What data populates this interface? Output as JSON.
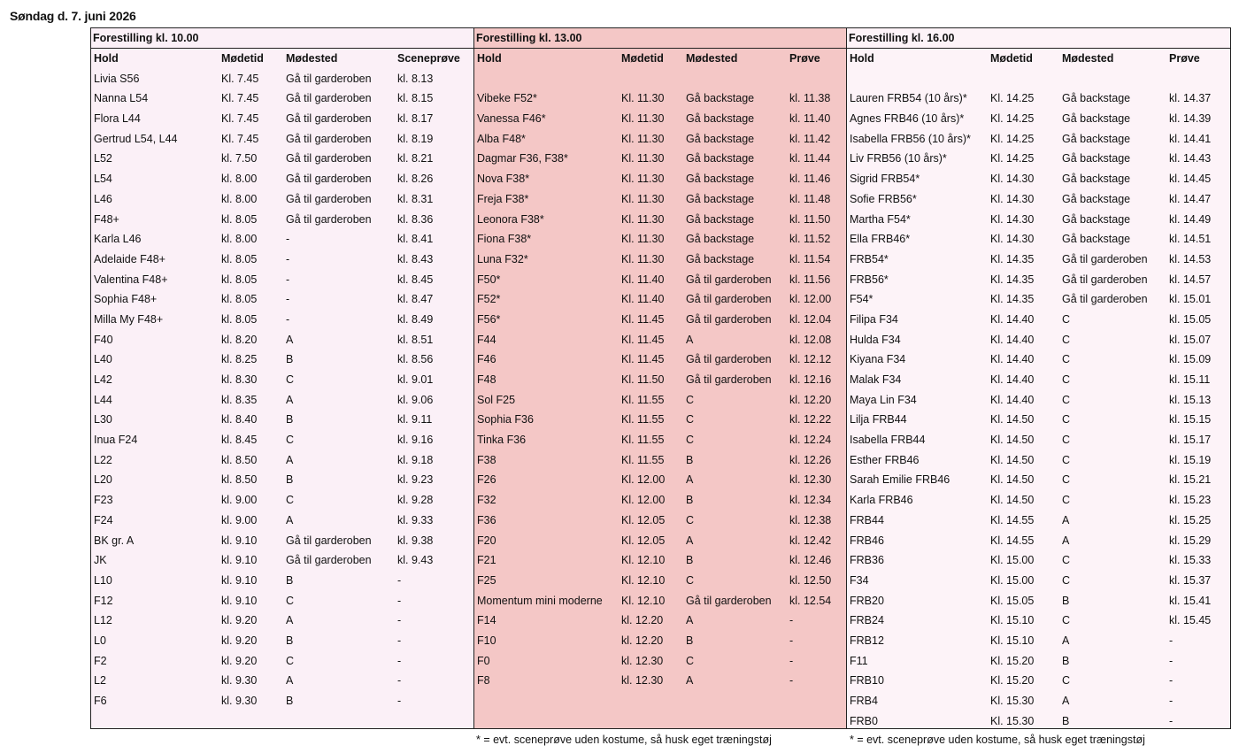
{
  "date": "Søndag d. 7. juni 2026",
  "panels": [
    {
      "title": "Forestilling kl. 10.00",
      "headers": [
        "Hold",
        "Mødetid",
        "Mødested",
        "Sceneprøve"
      ],
      "rows": [
        [
          "Livia S56",
          "Kl. 7.45",
          "Gå til garderoben",
          "kl. 8.13"
        ],
        [
          "Nanna L54",
          "Kl. 7.45",
          "Gå til garderoben",
          "kl. 8.15"
        ],
        [
          "Flora L44",
          "Kl. 7.45",
          "Gå til garderoben",
          "kl. 8.17"
        ],
        [
          "Gertrud L54, L44",
          "Kl. 7.45",
          "Gå til garderoben",
          "kl. 8.19"
        ],
        [
          "L52",
          "kl. 7.50",
          "Gå til garderoben",
          "kl. 8.21"
        ],
        [
          "L54",
          "kl. 8.00",
          "Gå til garderoben",
          "kl. 8.26"
        ],
        [
          "L46",
          "kl. 8.00",
          "Gå til garderoben",
          "kl. 8.31"
        ],
        [
          "F48+",
          "kl. 8.05",
          "Gå til garderoben",
          "kl. 8.36"
        ],
        [
          "Karla L46",
          "kl. 8.00",
          "-",
          "kl. 8.41"
        ],
        [
          "Adelaide F48+",
          "kl. 8.05",
          "-",
          "kl. 8.43"
        ],
        [
          "Valentina F48+",
          "kl. 8.05",
          "-",
          "kl. 8.45"
        ],
        [
          "Sophia F48+",
          "kl. 8.05",
          "-",
          "kl. 8.47"
        ],
        [
          "Milla My F48+",
          "kl. 8.05",
          "-",
          "kl. 8.49"
        ],
        [
          "F40",
          "kl. 8.20",
          "A",
          "kl. 8.51"
        ],
        [
          "L40",
          "kl. 8.25",
          "B",
          "kl. 8.56"
        ],
        [
          "L42",
          "kl. 8.30",
          "C",
          "kl. 9.01"
        ],
        [
          "L44",
          "kl. 8.35",
          "A",
          "kl. 9.06"
        ],
        [
          "L30",
          "kl. 8.40",
          "B",
          "kl. 9.11"
        ],
        [
          "Inua F24",
          "kl. 8.45",
          "C",
          "kl. 9.16"
        ],
        [
          "L22",
          "kl. 8.50",
          "A",
          "kl. 9.18"
        ],
        [
          "L20",
          "kl. 8.50",
          "B",
          "kl. 9.23"
        ],
        [
          "F23",
          "kl. 9.00",
          "C",
          "kl. 9.28"
        ],
        [
          "F24",
          "kl. 9.00",
          "A",
          "kl. 9.33"
        ],
        [
          "BK gr. A",
          "kl. 9.10",
          "Gå til garderoben",
          "kl. 9.38"
        ],
        [
          "JK",
          "kl. 9.10",
          "Gå til garderoben",
          "kl. 9.43"
        ],
        [
          "L10",
          "kl. 9.10",
          "B",
          "-"
        ],
        [
          "F12",
          "kl. 9.10",
          "C",
          "-"
        ],
        [
          "L12",
          "kl. 9.20",
          "A",
          "-"
        ],
        [
          "L0",
          "kl. 9.20",
          "B",
          "-"
        ],
        [
          "F2",
          "kl. 9.20",
          "C",
          "-"
        ],
        [
          "L2",
          "kl. 9.30",
          "A",
          "-"
        ],
        [
          "F6",
          "kl. 9.30",
          "B",
          "-"
        ]
      ]
    },
    {
      "title": "Forestilling kl. 13.00",
      "headers": [
        "Hold",
        "Mødetid",
        "Mødested",
        "Prøve"
      ],
      "rows": [
        [
          "",
          "",
          "",
          ""
        ],
        [
          "Vibeke F52*",
          "Kl. 11.30",
          "Gå backstage",
          "kl. 11.38"
        ],
        [
          "Vanessa F46*",
          "Kl. 11.30",
          "Gå backstage",
          "kl. 11.40"
        ],
        [
          "Alba F48*",
          "Kl. 11.30",
          "Gå backstage",
          "kl. 11.42"
        ],
        [
          "Dagmar F36, F38*",
          "Kl. 11.30",
          "Gå backstage",
          "kl. 11.44"
        ],
        [
          "Nova F38*",
          "Kl. 11.30",
          "Gå backstage",
          "kl. 11.46"
        ],
        [
          "Freja F38*",
          "Kl. 11.30",
          "Gå backstage",
          "kl. 11.48"
        ],
        [
          "Leonora F38*",
          "Kl. 11.30",
          "Gå backstage",
          "kl. 11.50"
        ],
        [
          "Fiona F38*",
          "Kl. 11.30",
          "Gå backstage",
          "kl. 11.52"
        ],
        [
          "Luna F32*",
          "Kl. 11.30",
          "Gå backstage",
          "kl. 11.54"
        ],
        [
          "F50*",
          "Kl. 11.40",
          "Gå til garderoben",
          "kl. 11.56"
        ],
        [
          "F52*",
          "Kl. 11.40",
          "Gå til garderoben",
          "kl. 12.00"
        ],
        [
          "F56*",
          "Kl. 11.45",
          "Gå til garderoben",
          "kl. 12.04"
        ],
        [
          "F44",
          "Kl. 11.45",
          "A",
          "kl. 12.08"
        ],
        [
          "F46",
          "Kl. 11.45",
          "Gå til garderoben",
          "kl. 12.12"
        ],
        [
          "F48",
          "Kl. 11.50",
          "Gå til garderoben",
          "kl. 12.16"
        ],
        [
          "Sol F25",
          "Kl. 11.55",
          "C",
          "kl. 12.20"
        ],
        [
          "Sophia F36",
          "Kl. 11.55",
          "C",
          "kl. 12.22"
        ],
        [
          "Tinka F36",
          "Kl. 11.55",
          "C",
          "kl. 12.24"
        ],
        [
          "F38",
          "Kl. 11.55",
          "B",
          "kl. 12.26"
        ],
        [
          "F26",
          "Kl. 12.00",
          "A",
          "kl. 12.30"
        ],
        [
          "F32",
          "Kl. 12.00",
          "B",
          "kl. 12.34"
        ],
        [
          "F36",
          "Kl. 12.05",
          "C",
          "kl. 12.38"
        ],
        [
          "F20",
          "Kl. 12.05",
          "A",
          "kl. 12.42"
        ],
        [
          "F21",
          "Kl. 12.10",
          "B",
          "kl. 12.46"
        ],
        [
          "F25",
          "Kl. 12.10",
          "C",
          "kl. 12.50"
        ],
        [
          "Momentum mini moderne",
          "Kl. 12.10",
          "Gå til garderoben",
          "kl. 12.54"
        ],
        [
          "F14",
          "kl. 12.20",
          "A",
          "-"
        ],
        [
          "F10",
          "kl. 12.20",
          "B",
          "-"
        ],
        [
          "F0",
          "kl. 12.30",
          "C",
          "-"
        ],
        [
          "F8",
          "kl. 12.30",
          "A",
          "-"
        ]
      ],
      "footnote": "* = evt. sceneprøve uden kostume, så husk eget træningstøj"
    },
    {
      "title": "Forestilling kl. 16.00",
      "headers": [
        "Hold",
        "Mødetid",
        "Mødested",
        "Prøve"
      ],
      "rows": [
        [
          "",
          "",
          "",
          ""
        ],
        [
          "Lauren FRB54 (10 års)*",
          "Kl. 14.25",
          "Gå backstage",
          "kl. 14.37"
        ],
        [
          "Agnes FRB46 (10 års)*",
          "Kl. 14.25",
          "Gå backstage",
          "kl. 14.39"
        ],
        [
          "Isabella FRB56 (10 års)*",
          "Kl. 14.25",
          "Gå backstage",
          "kl. 14.41"
        ],
        [
          "Liv FRB56 (10 års)*",
          "Kl. 14.25",
          "Gå backstage",
          "kl. 14.43"
        ],
        [
          "Sigrid FRB54*",
          "Kl. 14.30",
          "Gå backstage",
          "kl. 14.45"
        ],
        [
          "Sofie FRB56*",
          "Kl. 14.30",
          "Gå backstage",
          "kl. 14.47"
        ],
        [
          "Martha F54*",
          "Kl. 14.30",
          "Gå backstage",
          "kl. 14.49"
        ],
        [
          "Ella FRB46*",
          "Kl. 14.30",
          "Gå backstage",
          "kl. 14.51"
        ],
        [
          "FRB54*",
          "Kl. 14.35",
          "Gå til garderoben",
          "kl. 14.53"
        ],
        [
          "FRB56*",
          "Kl. 14.35",
          "Gå til garderoben",
          "kl. 14.57"
        ],
        [
          "F54*",
          "Kl. 14.35",
          "Gå til garderoben",
          "kl. 15.01"
        ],
        [
          "Filipa F34",
          "Kl. 14.40",
          "C",
          "kl. 15.05"
        ],
        [
          "Hulda F34",
          "Kl. 14.40",
          "C",
          "kl. 15.07"
        ],
        [
          "Kiyana F34",
          "Kl. 14.40",
          "C",
          "kl. 15.09"
        ],
        [
          "Malak F34",
          "Kl. 14.40",
          "C",
          "kl. 15.11"
        ],
        [
          "Maya Lin F34",
          "Kl. 14.40",
          "C",
          "kl. 15.13"
        ],
        [
          "Lilja FRB44",
          "Kl. 14.50",
          "C",
          "kl. 15.15"
        ],
        [
          "Isabella FRB44",
          "Kl. 14.50",
          "C",
          "kl. 15.17"
        ],
        [
          "Esther FRB46",
          "Kl. 14.50",
          "C",
          "kl. 15.19"
        ],
        [
          "Sarah Emilie FRB46",
          "Kl. 14.50",
          "C",
          "kl. 15.21"
        ],
        [
          "Karla FRB46",
          "Kl. 14.50",
          "C",
          "kl. 15.23"
        ],
        [
          "FRB44",
          "Kl. 14.55",
          "A",
          "kl. 15.25"
        ],
        [
          "FRB46",
          "Kl. 14.55",
          "A",
          "kl. 15.29"
        ],
        [
          "FRB36",
          "Kl. 15.00",
          "C",
          "kl. 15.33"
        ],
        [
          "F34",
          "Kl. 15.00",
          "C",
          "kl. 15.37"
        ],
        [
          "FRB20",
          "Kl. 15.05",
          "B",
          "kl. 15.41"
        ],
        [
          "FRB24",
          "Kl. 15.10",
          "C",
          "kl. 15.45"
        ],
        [
          "FRB12",
          "Kl. 15.10",
          "A",
          "-"
        ],
        [
          "F11",
          "Kl. 15.20",
          "B",
          "-"
        ],
        [
          "FRB10",
          "Kl. 15.20",
          "C",
          "-"
        ],
        [
          "FRB4",
          "Kl. 15.30",
          "A",
          "-"
        ],
        [
          "FRB0",
          "Kl. 15.30",
          "B",
          "-"
        ]
      ],
      "footnote": "* = evt. sceneprøve uden kostume, så husk eget træningstøj"
    }
  ]
}
